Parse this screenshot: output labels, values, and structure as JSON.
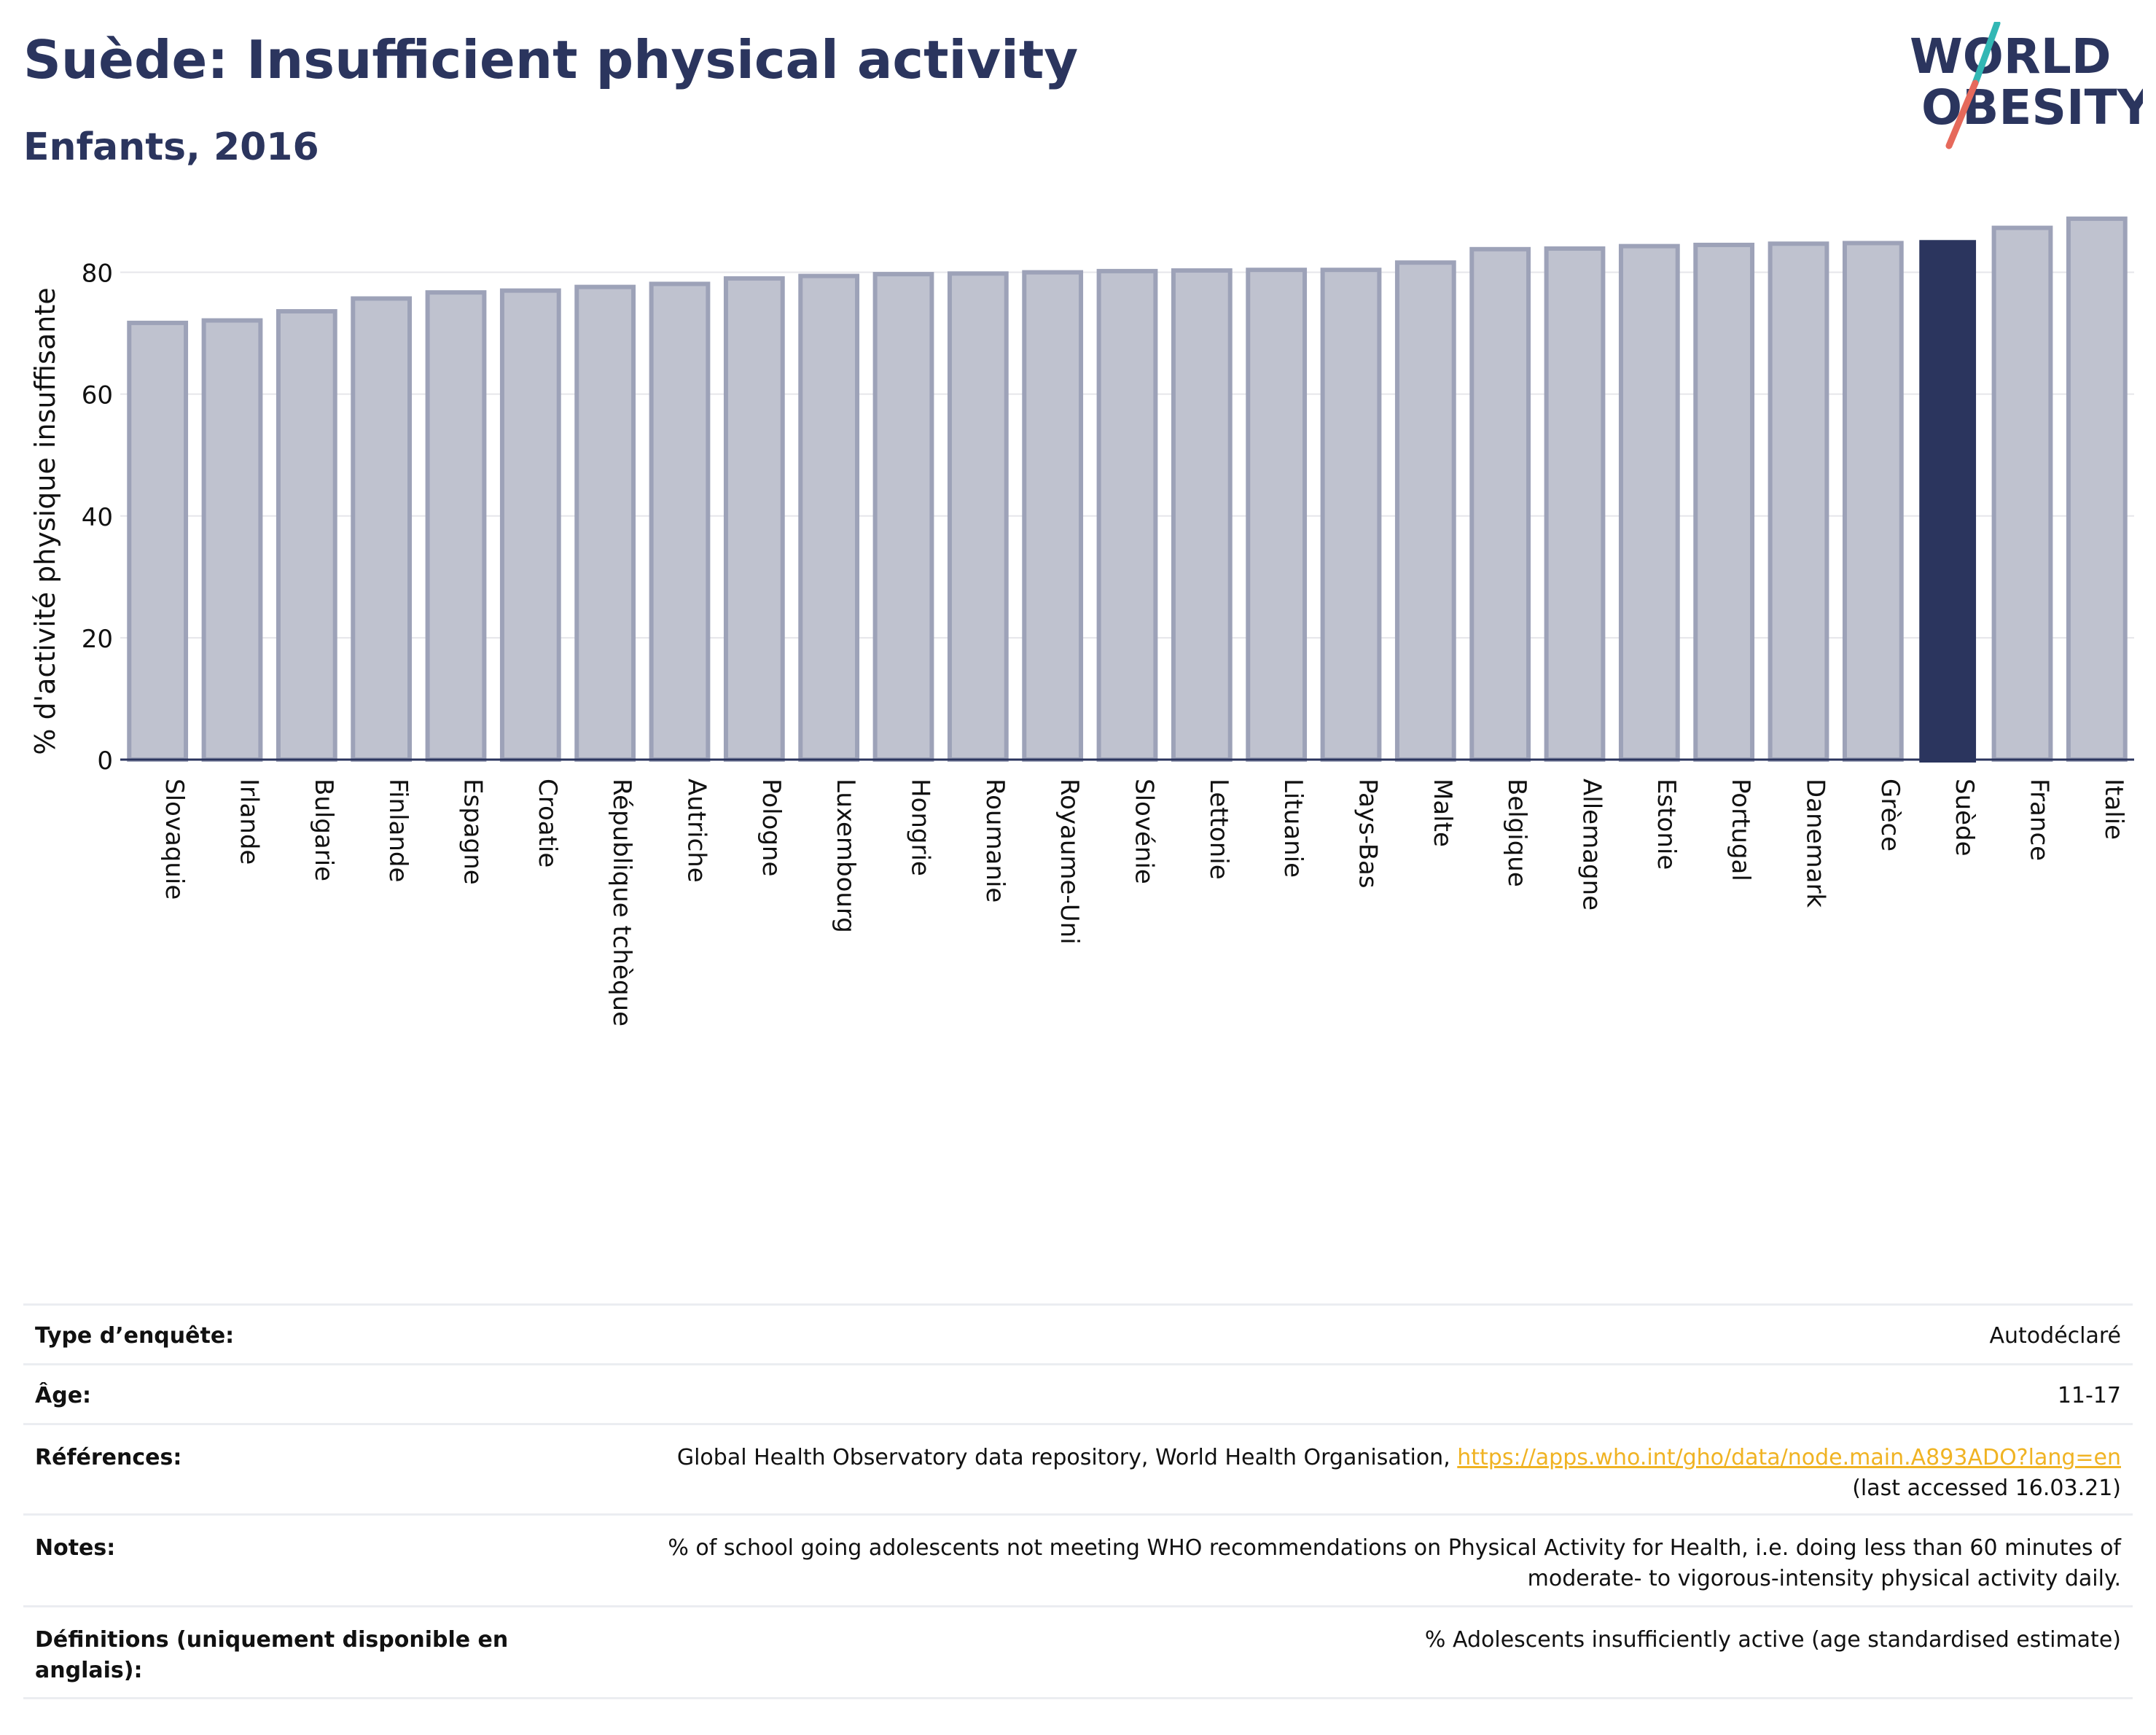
{
  "header": {
    "title": "Suède: Insufficient physical activity",
    "subtitle": "Enfants, 2016"
  },
  "logo": {
    "line1": "WORLD",
    "line2": "OBESITY"
  },
  "colors": {
    "bar": "#bfc2cf",
    "bar_edge": "#9da2b8",
    "highlight": "#2b355e",
    "grid": "#e6e6ea",
    "axis": "#2b355e"
  },
  "chart_data": {
    "type": "bar",
    "ylabel": "% d'activité physique insuffisante",
    "xlabel": "",
    "ylim": [
      0,
      90
    ],
    "yticks": [
      0,
      20,
      40,
      60,
      80
    ],
    "grid": true,
    "highlight": "Suède",
    "categories": [
      "Slovaquie",
      "Irlande",
      "Bulgarie",
      "Finlande",
      "Espagne",
      "Croatie",
      "République tchèque",
      "Autriche",
      "Pologne",
      "Luxembourg",
      "Hongrie",
      "Roumanie",
      "Royaume-Uni",
      "Slovénie",
      "Lettonie",
      "Lituanie",
      "Pays-Bas",
      "Malte",
      "Belgique",
      "Allemagne",
      "Estonie",
      "Portugal",
      "Danemark",
      "Grèce",
      "Suède",
      "France",
      "Italie"
    ],
    "values": [
      71.7,
      72.1,
      73.6,
      75.7,
      76.7,
      77.0,
      77.6,
      78.1,
      79.0,
      79.4,
      79.7,
      79.8,
      80.0,
      80.2,
      80.3,
      80.4,
      80.4,
      81.6,
      83.8,
      83.9,
      84.3,
      84.5,
      84.7,
      84.8,
      85.3,
      87.3,
      88.8
    ]
  },
  "meta": {
    "survey_label": "Type d’enquête:",
    "survey_value": "Autodéclaré",
    "age_label": "Âge:",
    "age_value": "11-17",
    "ref_label": "Références:",
    "ref_text": "Global Health Observatory data repository, World Health Organisation, ",
    "ref_link": "https://apps.who.int/gho/data/node.main.A893ADO?lang=en",
    "ref_accessed": "(last accessed 16.03.21)",
    "notes_label": "Notes:",
    "notes_line1": "% of school going adolescents not meeting WHO recommendations on Physical Activity for Health, i.e. doing less than 60 minutes of",
    "notes_line2": "moderate- to vigorous-intensity physical activity daily.",
    "def_label": "Définitions (uniquement disponible en anglais):",
    "def_value": "% Adolescents insufficiently active (age standardised estimate)"
  }
}
